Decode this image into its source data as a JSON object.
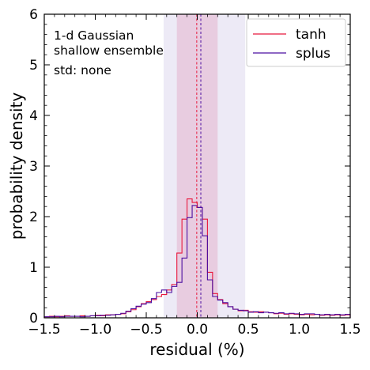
{
  "chart_data": {
    "type": "histogram",
    "xlabel": "residual (%)",
    "ylabel": "probability density",
    "xlim": [
      -1.5,
      1.5
    ],
    "ylim": [
      0,
      6
    ],
    "xticks": [
      -1.5,
      -1.0,
      -0.5,
      0.0,
      0.5,
      1.0,
      1.5
    ],
    "xtick_labels": [
      "−1.5",
      "−1.0",
      "−0.5",
      "0.0",
      "0.5",
      "1.0",
      "1.5"
    ],
    "yticks": [
      0,
      1,
      2,
      3,
      4,
      5,
      6
    ],
    "ytick_labels": [
      "0",
      "1",
      "2",
      "3",
      "4",
      "5",
      "6"
    ],
    "annotations": [
      "1-d Gaussian",
      "shallow ensemble",
      "std: none"
    ],
    "legend_position": "top-right",
    "bin_edges": [
      -1.5,
      -1.45,
      -1.4,
      -1.35,
      -1.3,
      -1.25,
      -1.2,
      -1.15,
      -1.1,
      -1.05,
      -1.0,
      -0.95,
      -0.9,
      -0.85,
      -0.8,
      -0.75,
      -0.7,
      -0.65,
      -0.6,
      -0.55,
      -0.5,
      -0.45,
      -0.4,
      -0.35,
      -0.3,
      -0.25,
      -0.2,
      -0.15,
      -0.1,
      -0.05,
      0.0,
      0.05,
      0.1,
      0.15,
      0.2,
      0.25,
      0.3,
      0.35,
      0.4,
      0.45,
      0.5,
      0.55,
      0.6,
      0.65,
      0.7,
      0.75,
      0.8,
      0.85,
      0.9,
      0.95,
      1.0,
      1.05,
      1.1,
      1.15,
      1.2,
      1.25,
      1.3,
      1.35,
      1.4,
      1.45,
      1.5
    ],
    "bands": [
      {
        "x0": -0.33,
        "x1": 0.47,
        "color": "#d8d0ec",
        "opacity": 0.45
      },
      {
        "x0": -0.2,
        "x1": 0.2,
        "color": "#e2a8c6",
        "opacity": 0.45
      }
    ],
    "series": [
      {
        "name": "tanh",
        "color": "#e8183c",
        "values": [
          0.02,
          0.03,
          0.02,
          0.03,
          0.04,
          0.03,
          0.03,
          0.04,
          0.03,
          0.04,
          0.05,
          0.04,
          0.06,
          0.06,
          0.07,
          0.08,
          0.12,
          0.16,
          0.22,
          0.28,
          0.32,
          0.36,
          0.42,
          0.46,
          0.55,
          0.66,
          1.28,
          1.95,
          2.35,
          2.28,
          2.18,
          1.95,
          0.9,
          0.48,
          0.36,
          0.28,
          0.22,
          0.17,
          0.14,
          0.15,
          0.12,
          0.11,
          0.12,
          0.11,
          0.1,
          0.08,
          0.09,
          0.07,
          0.08,
          0.07,
          0.06,
          0.07,
          0.06,
          0.07,
          0.05,
          0.06,
          0.05,
          0.06,
          0.05,
          0.06
        ],
        "mean_line": -0.005
      },
      {
        "name": "splus",
        "color": "#4b0ea0",
        "values": [
          0.02,
          0.02,
          0.03,
          0.02,
          0.03,
          0.03,
          0.03,
          0.02,
          0.03,
          0.04,
          0.04,
          0.05,
          0.05,
          0.06,
          0.07,
          0.09,
          0.13,
          0.18,
          0.23,
          0.27,
          0.3,
          0.38,
          0.5,
          0.55,
          0.5,
          0.62,
          0.7,
          1.18,
          1.98,
          2.22,
          2.18,
          1.62,
          0.75,
          0.42,
          0.35,
          0.3,
          0.22,
          0.17,
          0.15,
          0.14,
          0.11,
          0.12,
          0.1,
          0.11,
          0.1,
          0.09,
          0.1,
          0.08,
          0.09,
          0.08,
          0.07,
          0.08,
          0.08,
          0.07,
          0.06,
          0.07,
          0.06,
          0.07,
          0.06,
          0.07
        ],
        "mean_line": 0.035
      }
    ]
  }
}
